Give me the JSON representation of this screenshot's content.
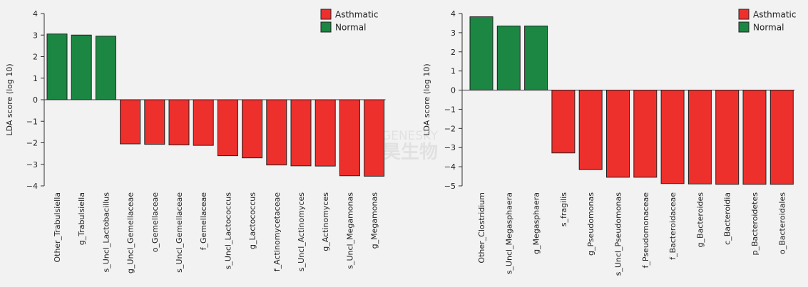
{
  "chart_data": [
    {
      "type": "bar",
      "title": "",
      "xlabel": "",
      "ylabel": "LDA score (log 10)",
      "ylim": [
        -4,
        4
      ],
      "yticks": [
        4,
        3,
        2,
        1,
        0,
        -1,
        -2,
        -3,
        -4
      ],
      "ytick_labels": [
        "4",
        "3",
        "2",
        "1",
        "0",
        "−1",
        "−2",
        "−3",
        "−4"
      ],
      "legend": {
        "placement": "top-right",
        "entries": [
          {
            "name": "Asthmatic",
            "color": "#ee302d"
          },
          {
            "name": "Normal",
            "color": "#1b8743"
          }
        ]
      },
      "categories": [
        "Other_Trabulsiella",
        "g_Trabulsiella",
        "s_Uncl_Lactobacillus",
        "g_Uncl_Gemellaceae",
        "o_Gemellaceae",
        "s_Uncl_Gemellaceae",
        "f_Gemellaceae",
        "s_Uncl_Lactococcus",
        "g_Lactococcus",
        "f_Actinomycetaceae",
        "s_Uncl_Actinomyces",
        "g_Actinomyces",
        "s_Uncl_Megamonas",
        "g_Megamonas"
      ],
      "values": [
        3.05,
        3.0,
        2.95,
        -2.05,
        -2.07,
        -2.1,
        -2.12,
        -2.6,
        -2.7,
        -3.03,
        -3.07,
        -3.08,
        -3.53,
        -3.55
      ],
      "groups": [
        "Normal",
        "Normal",
        "Normal",
        "Asthmatic",
        "Asthmatic",
        "Asthmatic",
        "Asthmatic",
        "Asthmatic",
        "Asthmatic",
        "Asthmatic",
        "Asthmatic",
        "Asthmatic",
        "Asthmatic",
        "Asthmatic"
      ],
      "grid": false
    },
    {
      "type": "bar",
      "title": "",
      "xlabel": "",
      "ylabel": "LDA score (log 10)",
      "ylim": [
        -5,
        4
      ],
      "yticks": [
        4,
        3,
        2,
        1,
        0,
        -1,
        -2,
        -3,
        -4,
        -5
      ],
      "ytick_labels": [
        "4",
        "3",
        "2",
        "1",
        "0",
        "−1",
        "−2",
        "−3",
        "−4",
        "−5"
      ],
      "legend": {
        "placement": "top-right",
        "entries": [
          {
            "name": "Asthmatic",
            "color": "#ee302d"
          },
          {
            "name": "Normal",
            "color": "#1b8743"
          }
        ]
      },
      "categories": [
        "Other_Clostridium",
        "s_Uncl_Megasphaera",
        "g_Megasphaera",
        "s_fragilis",
        "g_Pseudomonas",
        "s_Uncl_Pseudomonas",
        "f_Pseudomonaceae",
        "f_Bacteroidaceae",
        "g_Bacteroides",
        "c_Bacteroidia",
        "p_Bacteroidetes",
        "o_Bacteroidales"
      ],
      "values": [
        3.83,
        3.35,
        3.35,
        -3.28,
        -4.15,
        -4.55,
        -4.55,
        -4.88,
        -4.9,
        -4.92,
        -4.92,
        -4.92
      ],
      "groups": [
        "Normal",
        "Normal",
        "Normal",
        "Asthmatic",
        "Asthmatic",
        "Asthmatic",
        "Asthmatic",
        "Asthmatic",
        "Asthmatic",
        "Asthmatic",
        "Asthmatic",
        "Asthmatic"
      ],
      "grid": false
    }
  ],
  "watermark": {
    "latin": "GENESKY",
    "cjk": "天昊生物"
  }
}
